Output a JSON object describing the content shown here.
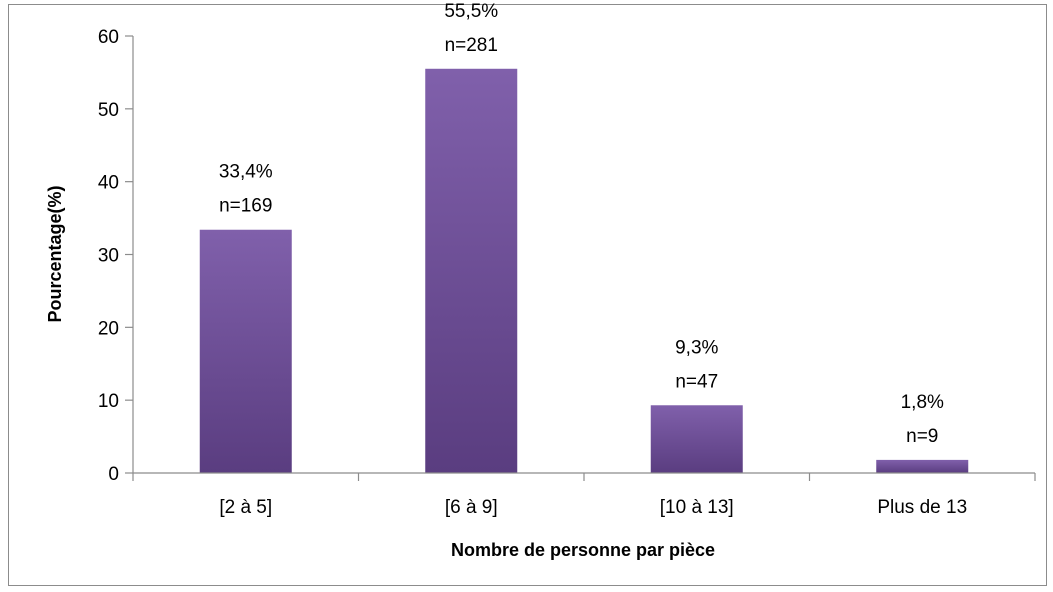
{
  "chart_data": {
    "type": "bar",
    "categories": [
      "[2 à 5]",
      "[6 à 9]",
      "[10 à 13]",
      "Plus de 13"
    ],
    "values": [
      33.4,
      55.5,
      9.3,
      1.8
    ],
    "data_labels": [
      [
        "33,4%",
        "n=169"
      ],
      [
        "55,5%",
        "n=281"
      ],
      [
        "9,3%",
        "n=47"
      ],
      [
        "1,8%",
        "n=9"
      ]
    ],
    "title": "",
    "xlabel": "Nombre de personne par pièce",
    "ylabel": "Pourcentage(%)",
    "ylim": [
      0,
      60
    ],
    "yticks": [
      0,
      10,
      20,
      30,
      40,
      50,
      60
    ],
    "grid": false,
    "legend": "none",
    "bar_color_top": "#8060ab",
    "bar_color_bottom": "#5a3d80",
    "axis_color": "#8c8c8c"
  }
}
